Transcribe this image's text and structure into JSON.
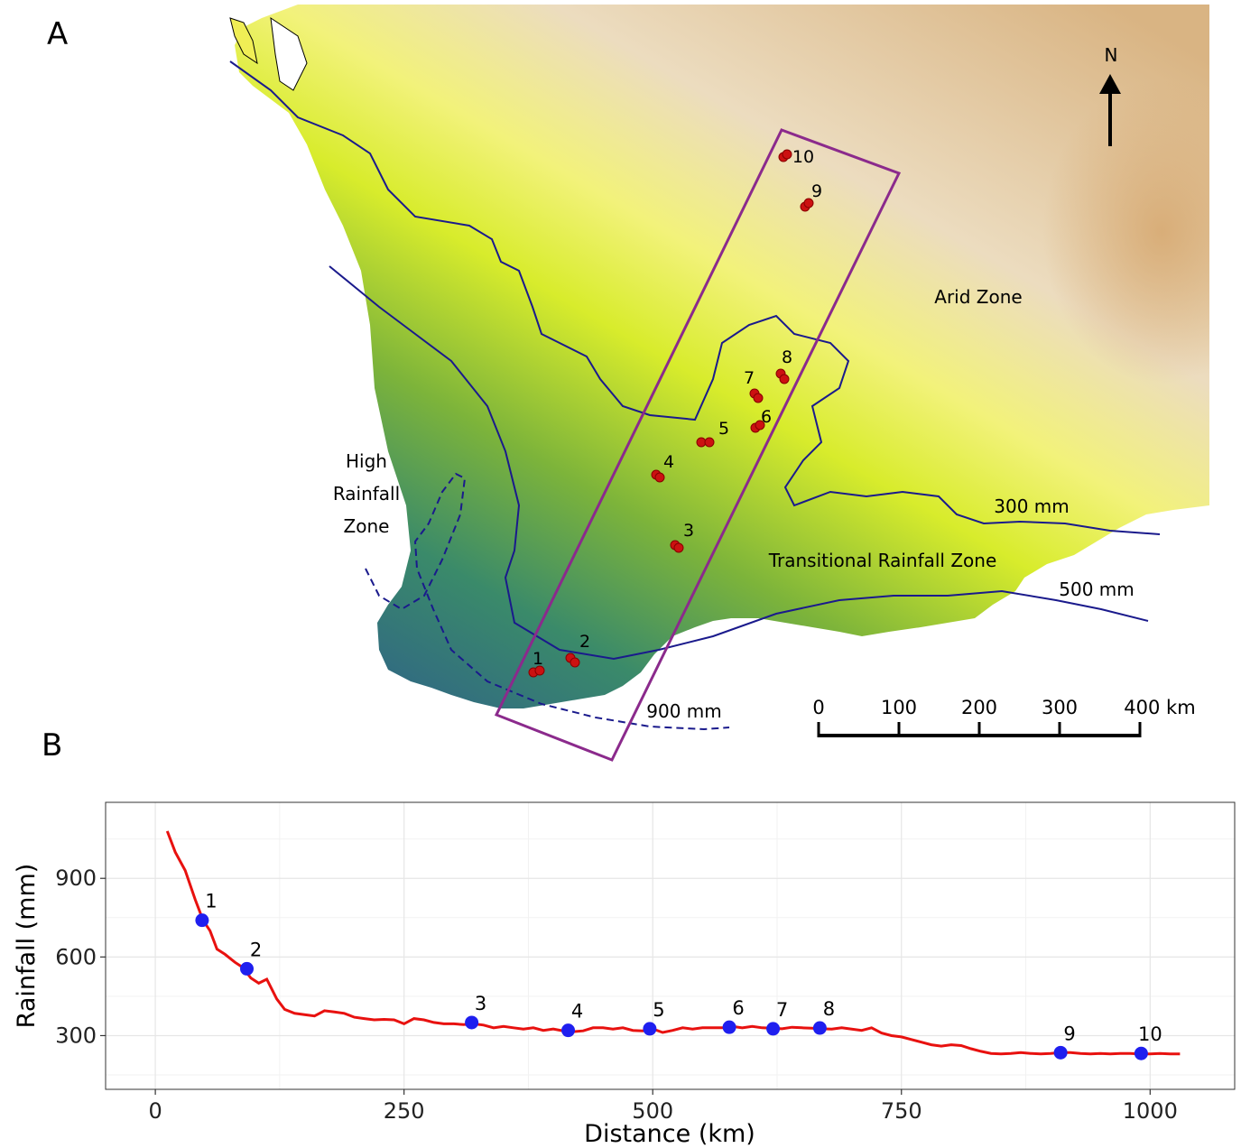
{
  "panels": {
    "a": "A",
    "b": "B"
  },
  "map": {
    "north_label": "N",
    "zones": {
      "high_line1": "High",
      "high_line2": "Rainfall",
      "high_line3": "Zone",
      "transitional": "Transitional Rainfall Zone",
      "arid": "Arid Zone"
    },
    "isohyets": {
      "i300": "300 mm",
      "i500": "500 mm",
      "i900": "900 mm"
    },
    "sites": [
      "1",
      "2",
      "3",
      "4",
      "5",
      "6",
      "7",
      "8",
      "9",
      "10"
    ],
    "scale_bar": {
      "labels": [
        "0",
        "100",
        "200",
        "300",
        "400 km"
      ]
    },
    "colors": {
      "high_rainfall": "#2e6a8c",
      "mid_rainfall": "#7fb23a",
      "low_rainfall": "#eef22a",
      "arid": "#e6cfa8",
      "isohyet_line": "#1a1a8c",
      "transect_box": "#8b2a8c",
      "site_marker": "#cc1111"
    }
  },
  "chart_data": {
    "type": "line",
    "xlabel": "Distance (km)",
    "ylabel": "Rainfall (mm)",
    "xlim": [
      -50,
      1085
    ],
    "ylim": [
      95,
      1190
    ],
    "x_ticks": [
      0,
      250,
      500,
      750,
      1000
    ],
    "y_ticks": [
      300,
      600,
      900
    ],
    "series": [
      {
        "x": [
          12,
          20,
          30,
          40,
          48,
          55,
          62,
          70,
          80,
          88,
          96,
          104,
          112,
          118,
          122,
          130,
          140,
          150,
          160,
          170,
          180,
          190,
          200,
          210,
          220,
          230,
          240,
          250,
          260,
          270,
          280,
          290,
          300,
          310,
          320,
          330,
          340,
          350,
          360,
          370,
          380,
          390,
          400,
          410,
          420,
          430,
          440,
          450,
          460,
          470,
          480,
          490,
          500,
          510,
          520,
          530,
          540,
          550,
          560,
          570,
          580,
          590,
          600,
          610,
          620,
          630,
          640,
          650,
          660,
          670,
          680,
          690,
          700,
          710,
          720,
          730,
          740,
          750,
          760,
          770,
          780,
          790,
          800,
          810,
          820,
          830,
          840,
          850,
          860,
          870,
          880,
          890,
          900,
          910,
          920,
          930,
          940,
          950,
          960,
          970,
          980,
          990,
          1000,
          1010,
          1020,
          1030
        ],
        "y": [
          1080,
          1000,
          930,
          820,
          740,
          700,
          630,
          610,
          580,
          560,
          520,
          500,
          515,
          470,
          440,
          400,
          385,
          380,
          375,
          395,
          390,
          385,
          370,
          365,
          360,
          362,
          360,
          345,
          365,
          360,
          350,
          345,
          345,
          342,
          345,
          340,
          330,
          335,
          330,
          325,
          330,
          320,
          325,
          318,
          315,
          318,
          330,
          330,
          325,
          330,
          320,
          318,
          326,
          312,
          320,
          330,
          325,
          330,
          330,
          330,
          335,
          330,
          335,
          330,
          328,
          326,
          332,
          330,
          328,
          326,
          325,
          330,
          325,
          320,
          330,
          310,
          300,
          295,
          285,
          275,
          265,
          260,
          265,
          262,
          250,
          240,
          232,
          230,
          232,
          235,
          232,
          230,
          232,
          235,
          235,
          232,
          230,
          232,
          230,
          232,
          232,
          230,
          230,
          232,
          230,
          230
        ]
      }
    ],
    "points": [
      {
        "label": "1",
        "x": 47,
        "y": 740
      },
      {
        "label": "2",
        "x": 92,
        "y": 555
      },
      {
        "label": "3",
        "x": 318,
        "y": 350
      },
      {
        "label": "4",
        "x": 415,
        "y": 320
      },
      {
        "label": "5",
        "x": 497,
        "y": 326
      },
      {
        "label": "6",
        "x": 577,
        "y": 332
      },
      {
        "label": "7",
        "x": 621,
        "y": 326
      },
      {
        "label": "8",
        "x": 668,
        "y": 329
      },
      {
        "label": "9",
        "x": 910,
        "y": 235
      },
      {
        "label": "10",
        "x": 991,
        "y": 232
      }
    ],
    "line_color": "#e8110f",
    "point_color": "#1f1fef",
    "grid": true
  }
}
